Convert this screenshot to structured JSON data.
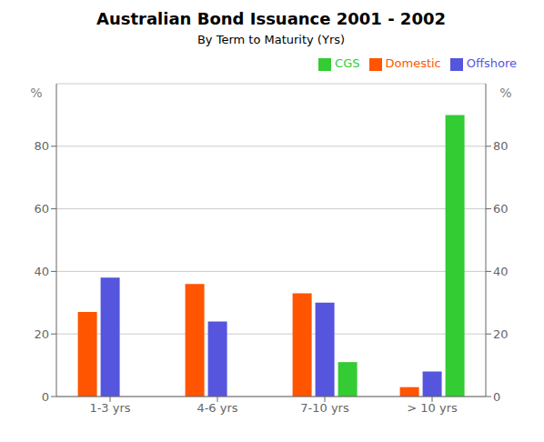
{
  "chart_data": {
    "type": "bar",
    "title": "Australian Bond Issuance 2001 - 2002",
    "subtitle": "By Term to Maturity (Yrs)",
    "categories": [
      "1-3 yrs",
      "4-6 yrs",
      "7-10 yrs",
      "> 10 yrs"
    ],
    "series": [
      {
        "name": "Domestic",
        "color": "#FF5500",
        "values": [
          27,
          36,
          33,
          3
        ]
      },
      {
        "name": "Offshore",
        "color": "#5555DD",
        "values": [
          38,
          24,
          30,
          8
        ]
      },
      {
        "name": "CGS",
        "color": "#33CC33",
        "values": [
          0,
          0,
          11,
          90
        ]
      }
    ],
    "ylim": [
      0,
      100
    ],
    "yticks": [
      0,
      20,
      40,
      60,
      80
    ],
    "y2lim": [
      0,
      100
    ],
    "y2ticks": [
      0,
      20,
      40,
      60,
      80
    ],
    "ylabel": "%",
    "y2label": "%",
    "grid": true,
    "legend": "upper right"
  }
}
